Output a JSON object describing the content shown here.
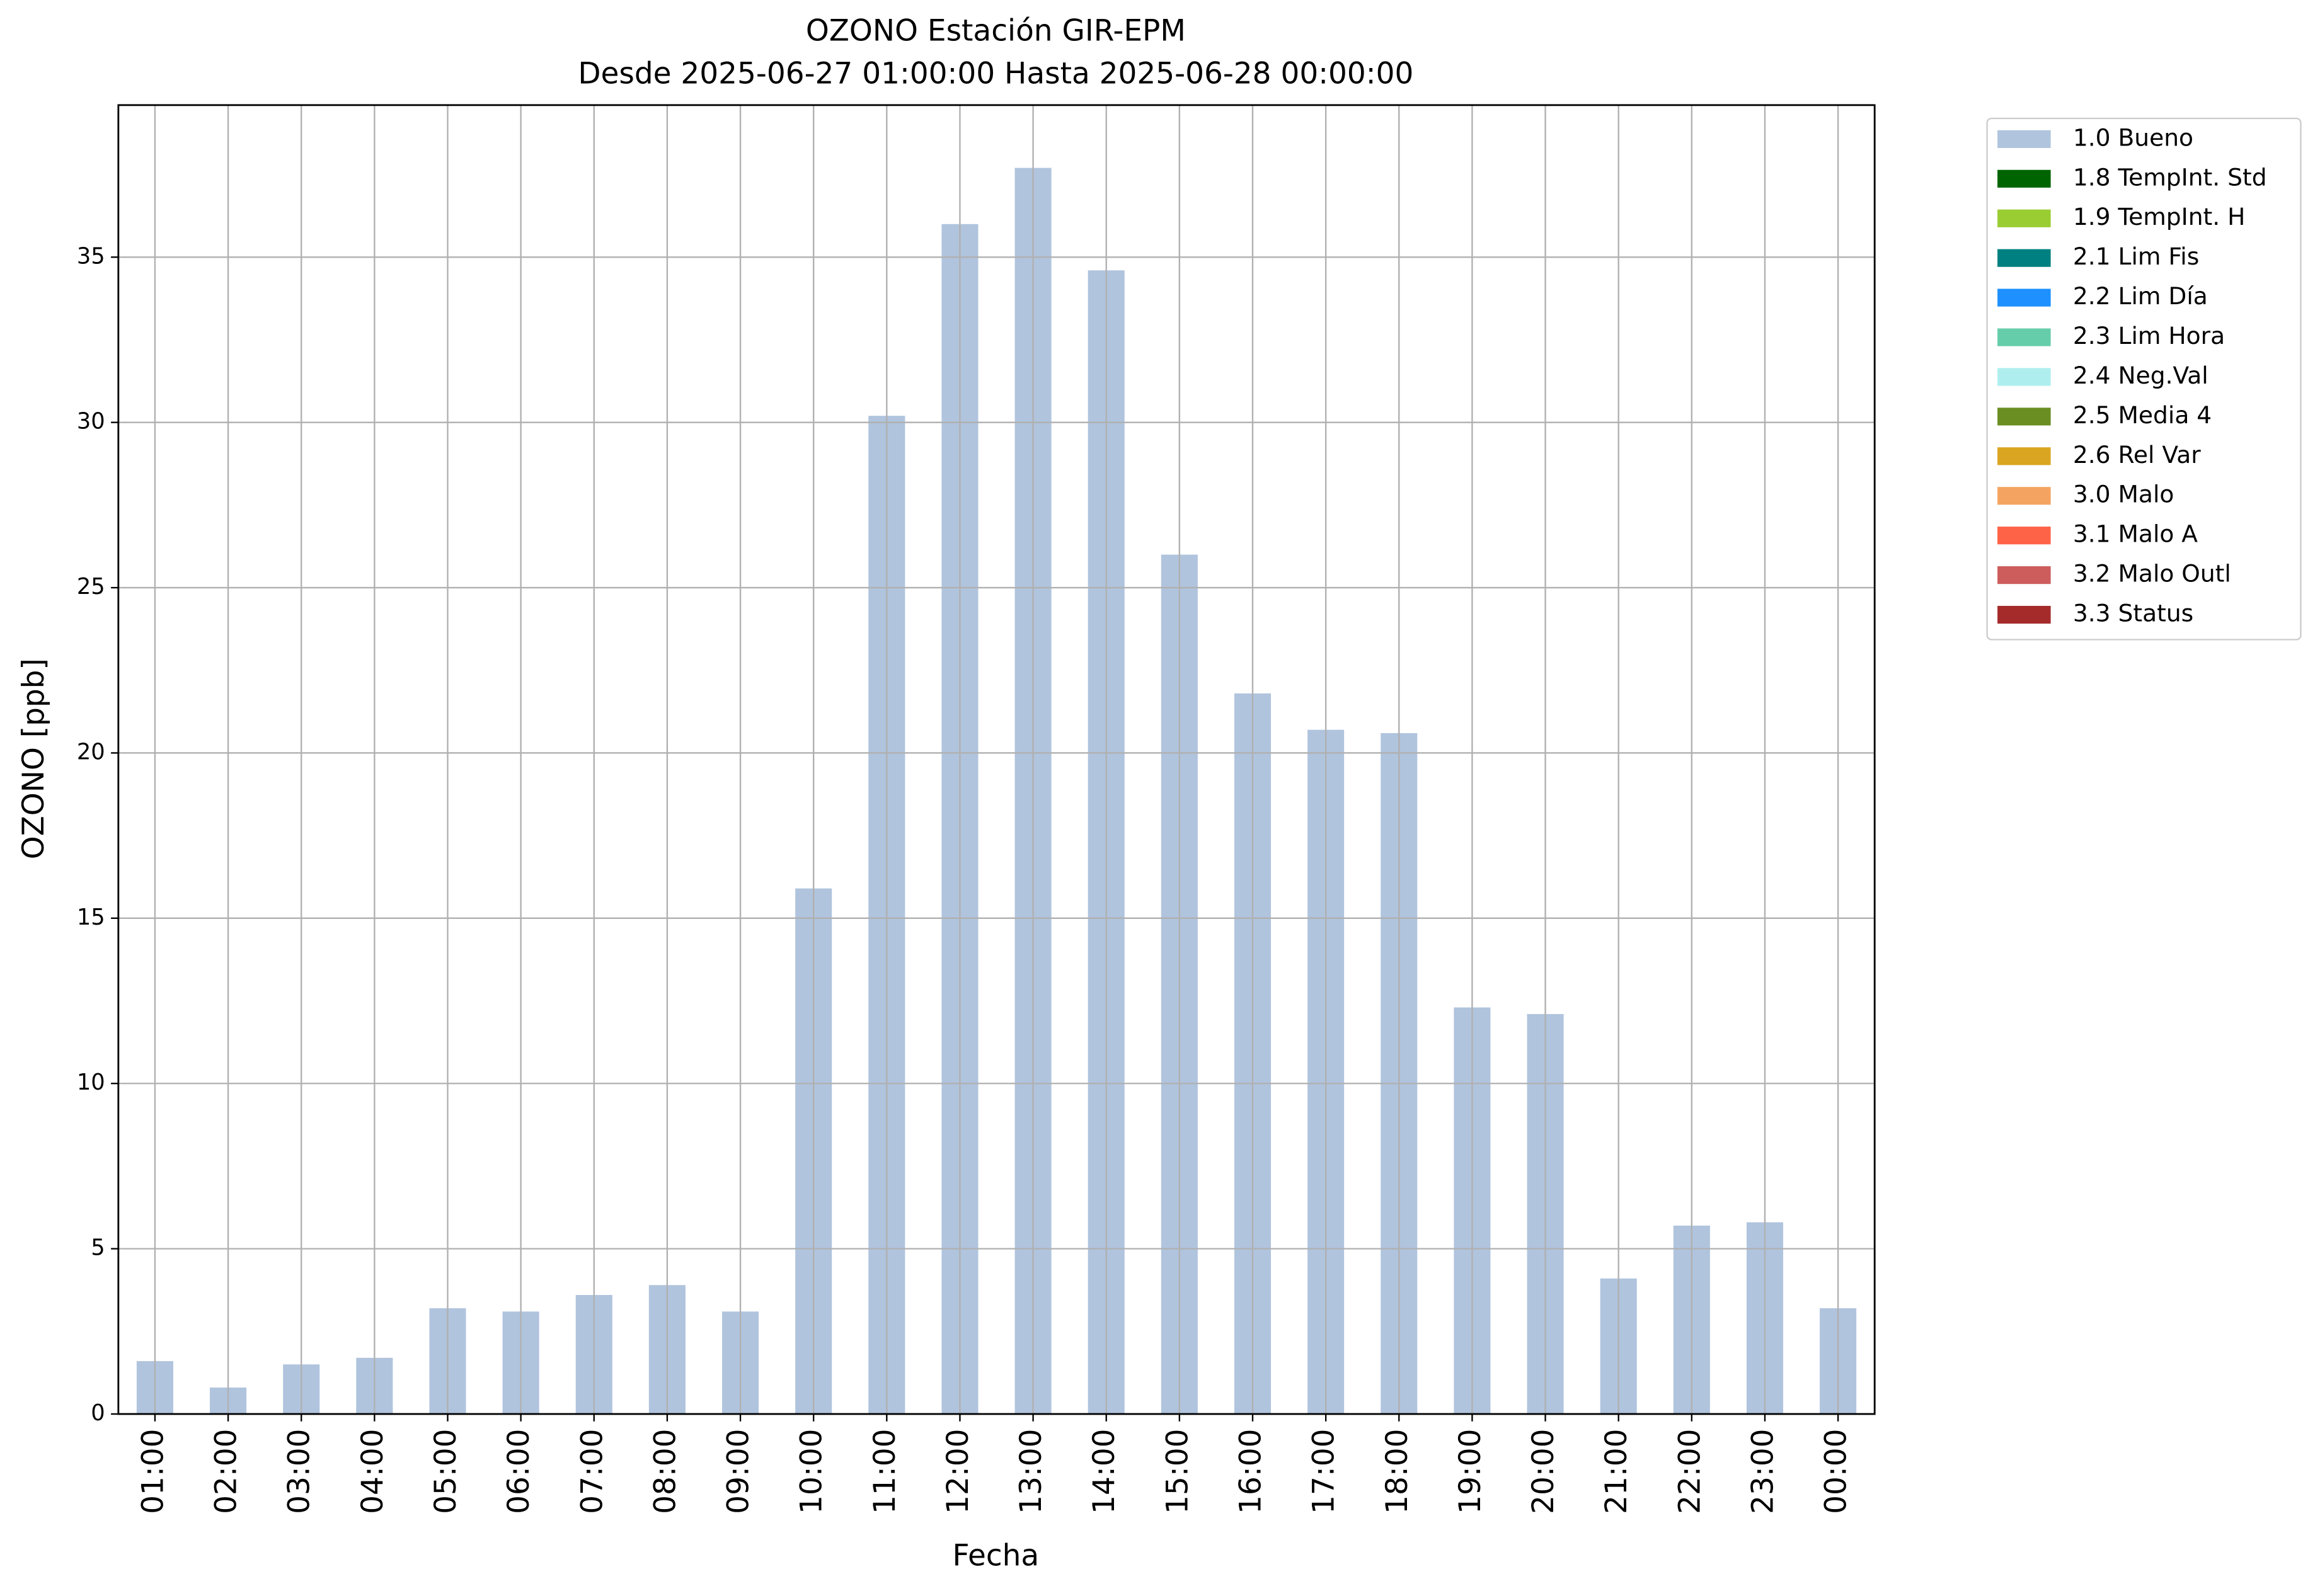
{
  "chart_data": {
    "type": "bar",
    "title": "OZONO Estación GIR-EPM",
    "subtitle": "Desde 2025-06-27 01:00:00 Hasta 2025-06-28 00:00:00",
    "x_label": "Fecha",
    "y_label": "OZONO [ppb]",
    "categories": [
      "01:00",
      "02:00",
      "03:00",
      "04:00",
      "05:00",
      "06:00",
      "07:00",
      "08:00",
      "09:00",
      "10:00",
      "11:00",
      "12:00",
      "13:00",
      "14:00",
      "15:00",
      "16:00",
      "17:00",
      "18:00",
      "19:00",
      "20:00",
      "21:00",
      "22:00",
      "23:00",
      "00:00"
    ],
    "series": [
      {
        "name": "1.0 Bueno",
        "color": "#b0c4de",
        "values": [
          1.6,
          0.8,
          1.5,
          1.7,
          3.2,
          3.1,
          3.6,
          3.9,
          3.1,
          15.9,
          30.2,
          36.0,
          37.7,
          34.6,
          26.0,
          21.8,
          20.7,
          20.6,
          12.3,
          12.1,
          4.1,
          5.7,
          5.8,
          3.2
        ]
      },
      {
        "name": "1.8 TempInt. Std",
        "color": "#006400",
        "values": [
          null,
          null,
          null,
          null,
          null,
          null,
          null,
          null,
          null,
          null,
          null,
          null,
          null,
          null,
          null,
          null,
          null,
          null,
          null,
          null,
          null,
          null,
          null,
          null
        ]
      },
      {
        "name": "1.9 TempInt. H",
        "color": "#9acd32",
        "values": [
          null,
          null,
          null,
          null,
          null,
          null,
          null,
          null,
          null,
          null,
          null,
          null,
          null,
          null,
          null,
          null,
          null,
          null,
          null,
          null,
          null,
          null,
          null,
          null
        ]
      },
      {
        "name": "2.1 Lim Fis",
        "color": "#008080",
        "values": [
          null,
          null,
          null,
          null,
          null,
          null,
          null,
          null,
          null,
          null,
          null,
          null,
          null,
          null,
          null,
          null,
          null,
          null,
          null,
          null,
          null,
          null,
          null,
          null
        ]
      },
      {
        "name": "2.2 Lim Día",
        "color": "#1e90ff",
        "values": [
          null,
          null,
          null,
          null,
          null,
          null,
          null,
          null,
          null,
          null,
          null,
          null,
          null,
          null,
          null,
          null,
          null,
          null,
          null,
          null,
          null,
          null,
          null,
          null
        ]
      },
      {
        "name": "2.3 Lim Hora",
        "color": "#66cdaa",
        "values": [
          null,
          null,
          null,
          null,
          null,
          null,
          null,
          null,
          null,
          null,
          null,
          null,
          null,
          null,
          null,
          null,
          null,
          null,
          null,
          null,
          null,
          null,
          null,
          null
        ]
      },
      {
        "name": "2.4 Neg.Val",
        "color": "#afeeee",
        "values": [
          null,
          null,
          null,
          null,
          null,
          null,
          null,
          null,
          null,
          null,
          null,
          null,
          null,
          null,
          null,
          null,
          null,
          null,
          null,
          null,
          null,
          null,
          null,
          null
        ]
      },
      {
        "name": "2.5 Media 4",
        "color": "#6b8e23",
        "values": [
          null,
          null,
          null,
          null,
          null,
          null,
          null,
          null,
          null,
          null,
          null,
          null,
          null,
          null,
          null,
          null,
          null,
          null,
          null,
          null,
          null,
          null,
          null,
          null
        ]
      },
      {
        "name": "2.6 Rel Var",
        "color": "#daa520",
        "values": [
          null,
          null,
          null,
          null,
          null,
          null,
          null,
          null,
          null,
          null,
          null,
          null,
          null,
          null,
          null,
          null,
          null,
          null,
          null,
          null,
          null,
          null,
          null,
          null
        ]
      },
      {
        "name": "3.0 Malo",
        "color": "#f4a460",
        "values": [
          null,
          null,
          null,
          null,
          null,
          null,
          null,
          null,
          null,
          null,
          null,
          null,
          null,
          null,
          null,
          null,
          null,
          null,
          null,
          null,
          null,
          null,
          null,
          null
        ]
      },
      {
        "name": "3.1 Malo A",
        "color": "#ff6347",
        "values": [
          null,
          null,
          null,
          null,
          null,
          null,
          null,
          null,
          null,
          null,
          null,
          null,
          null,
          null,
          null,
          null,
          null,
          null,
          null,
          null,
          null,
          null,
          null,
          null
        ]
      },
      {
        "name": "3.2 Malo Outl",
        "color": "#cd5c5c",
        "values": [
          null,
          null,
          null,
          null,
          null,
          null,
          null,
          null,
          null,
          null,
          null,
          null,
          null,
          null,
          null,
          null,
          null,
          null,
          null,
          null,
          null,
          null,
          null,
          null
        ]
      },
      {
        "name": "3.3 Status",
        "color": "#a52a2a",
        "values": [
          null,
          null,
          null,
          null,
          null,
          null,
          null,
          null,
          null,
          null,
          null,
          null,
          null,
          null,
          null,
          null,
          null,
          null,
          null,
          null,
          null,
          null,
          null,
          null
        ]
      }
    ],
    "ylim": [
      0,
      39.6
    ],
    "yticks": [
      0,
      5,
      10,
      15,
      20,
      25,
      30,
      35
    ],
    "grid": true,
    "legend": "outside-upper-right"
  }
}
